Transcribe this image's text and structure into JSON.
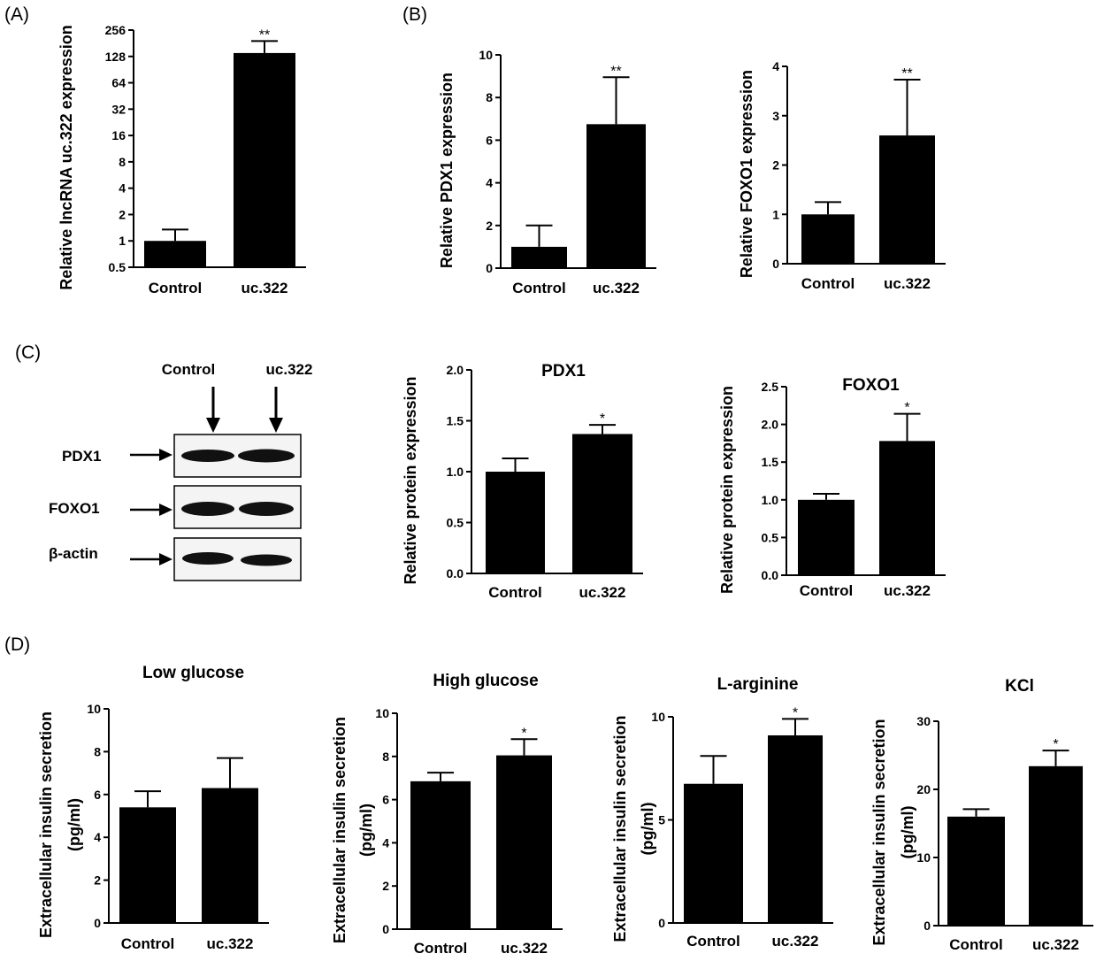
{
  "panel_labels": [
    "(A)",
    "(B)",
    "(C)",
    "(D)"
  ],
  "western_blot": {
    "lane_labels": [
      "Control",
      "uc.322"
    ],
    "band_labels": [
      "PDX1",
      "FOXO1",
      "β-actin"
    ]
  },
  "chart_data": [
    {
      "id": "A",
      "type": "bar",
      "title": "",
      "ylabel": "Relative  lncRNA uc.322 expression",
      "yscale": "log2",
      "ylim": [
        0.5,
        256
      ],
      "yticks": [
        0.5,
        1,
        2,
        4,
        8,
        16,
        32,
        64,
        128,
        256
      ],
      "categories": [
        "Control",
        "uc.322"
      ],
      "values": [
        1,
        140
      ],
      "errors": [
        0.35,
        52
      ],
      "significance": [
        "",
        "**"
      ]
    },
    {
      "id": "B1",
      "type": "bar",
      "title": "",
      "ylabel": "Relative  PDX1 expression",
      "ylim": [
        0,
        10
      ],
      "yticks": [
        0,
        2,
        4,
        6,
        8,
        10
      ],
      "categories": [
        "Control",
        "uc.322"
      ],
      "values": [
        1.0,
        6.75
      ],
      "errors": [
        1.0,
        2.2
      ],
      "significance": [
        "",
        "**"
      ]
    },
    {
      "id": "B2",
      "type": "bar",
      "title": "",
      "ylabel": "Relative FOXO1 expression",
      "ylim": [
        0,
        4
      ],
      "yticks": [
        0,
        1,
        2,
        3,
        4
      ],
      "categories": [
        "Control",
        "uc.322"
      ],
      "values": [
        1.0,
        2.6
      ],
      "errors": [
        0.25,
        1.13
      ],
      "significance": [
        "",
        "**"
      ]
    },
    {
      "id": "C1",
      "type": "bar",
      "title": "PDX1",
      "ylabel": "Relative protein expression",
      "ylim": [
        0,
        2.0
      ],
      "yticks": [
        "0.0",
        "0.5",
        "1.0",
        "1.5",
        "2.0"
      ],
      "categories": [
        "Control",
        "uc.322"
      ],
      "values": [
        1.0,
        1.37
      ],
      "errors": [
        0.13,
        0.09
      ],
      "significance": [
        "",
        "*"
      ]
    },
    {
      "id": "C2",
      "type": "bar",
      "title": "FOXO1",
      "ylabel": "Relative  protein expression",
      "ylim": [
        0,
        2.5
      ],
      "yticks": [
        "0.0",
        "0.5",
        "1.0",
        "1.5",
        "2.0",
        "2.5"
      ],
      "categories": [
        "Control",
        "uc.322"
      ],
      "values": [
        1.0,
        1.78
      ],
      "errors": [
        0.08,
        0.36
      ],
      "significance": [
        "",
        "*"
      ]
    },
    {
      "id": "D1",
      "type": "bar",
      "title": "Low glucose",
      "ylabel": "Extracellular insulin secretion",
      "ylabel2": "(pg/ml)",
      "ylim": [
        0,
        10
      ],
      "yticks": [
        0,
        2,
        4,
        6,
        8,
        10
      ],
      "categories": [
        "Control",
        "uc.322"
      ],
      "values": [
        5.4,
        6.3
      ],
      "errors": [
        0.75,
        1.4
      ],
      "significance": [
        "",
        ""
      ]
    },
    {
      "id": "D2",
      "type": "bar",
      "title": "High glucose",
      "ylabel": "Extracellular insulin secretion",
      "ylabel2": "(pg/ml)",
      "ylim": [
        0,
        10
      ],
      "yticks": [
        0,
        2,
        4,
        6,
        8,
        10
      ],
      "categories": [
        "Control",
        "uc.322"
      ],
      "values": [
        6.85,
        8.05
      ],
      "errors": [
        0.4,
        0.75
      ],
      "significance": [
        "",
        "*"
      ]
    },
    {
      "id": "D3",
      "type": "bar",
      "title": "L-arginine",
      "ylabel": "Extracellular insulin secretion",
      "ylabel2": "(pg/ml)",
      "ylim": [
        0,
        10
      ],
      "yticks": [
        0,
        5,
        10
      ],
      "categories": [
        "Control",
        "uc.322"
      ],
      "values": [
        6.75,
        9.1
      ],
      "errors": [
        1.35,
        0.8
      ],
      "significance": [
        "",
        "*"
      ]
    },
    {
      "id": "D4",
      "type": "bar",
      "title": "KCl",
      "ylabel": "Extracellular insulin secretion",
      "ylabel2": "(pg/ml)",
      "ylim": [
        0,
        30
      ],
      "yticks": [
        0,
        10,
        20,
        30
      ],
      "categories": [
        "Control",
        "uc.322"
      ],
      "values": [
        16.0,
        23.4
      ],
      "errors": [
        1.1,
        2.3
      ],
      "significance": [
        "",
        "*"
      ]
    }
  ]
}
